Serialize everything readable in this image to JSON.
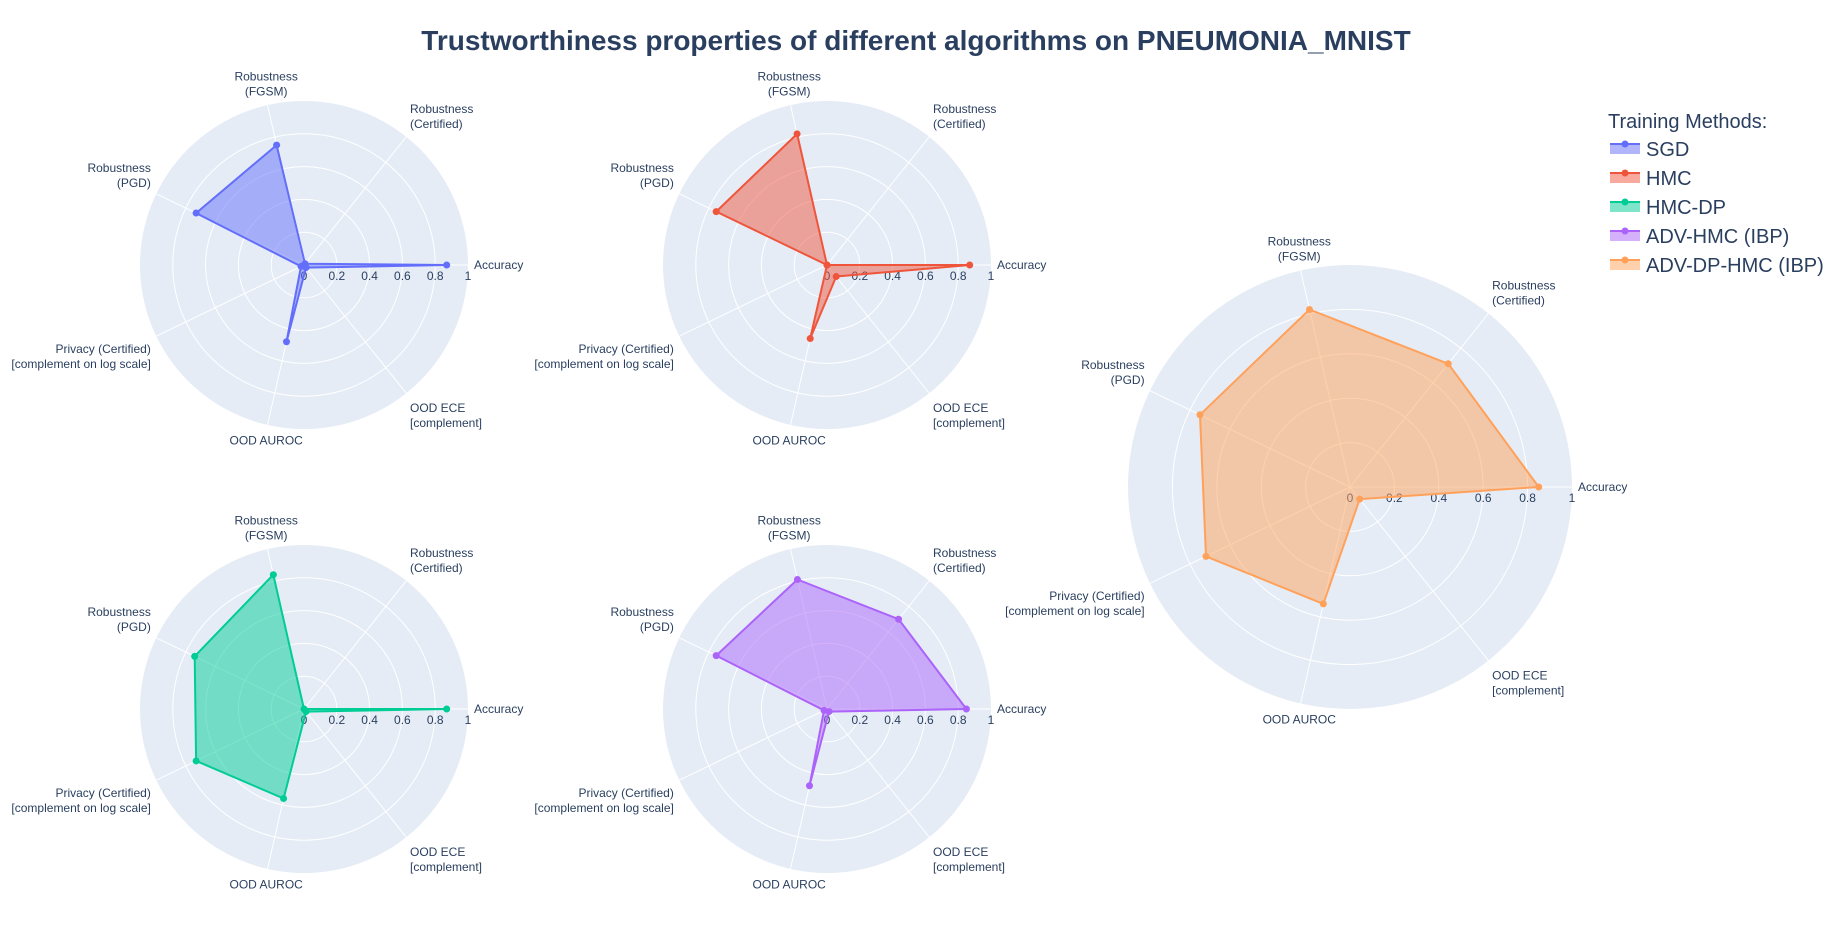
{
  "title": "Trustworthiness properties of different algorithms on PNEUMONIA_MNIST",
  "legend": {
    "title": "Training Methods:",
    "items": [
      {
        "label": "SGD",
        "color": "#636efa"
      },
      {
        "label": "HMC",
        "color": "#ef553b"
      },
      {
        "label": "HMC-DP",
        "color": "#00cc96"
      },
      {
        "label": "ADV-HMC (IBP)",
        "color": "#ab63fa"
      },
      {
        "label": "ADV-DP-HMC (IBP)",
        "color": "#ffa15a"
      }
    ]
  },
  "chart_data": {
    "type": "radar",
    "axes": [
      {
        "lines": [
          "Accuracy"
        ]
      },
      {
        "lines": [
          "Robustness",
          "(Certified)"
        ]
      },
      {
        "lines": [
          "Robustness",
          "(FGSM)"
        ]
      },
      {
        "lines": [
          "Robustness",
          "(PGD)"
        ]
      },
      {
        "lines": [
          "Privacy (Certified)",
          "[complement on log scale]"
        ]
      },
      {
        "lines": [
          "OOD AUROC"
        ]
      },
      {
        "lines": [
          "OOD ECE",
          "[complement]"
        ]
      }
    ],
    "radial_range": [
      0,
      1
    ],
    "radial_ticks": [
      "0",
      "0.2",
      "0.4",
      "0.6",
      "0.8",
      "1"
    ],
    "grid": true,
    "legend_position": "top-right",
    "series": [
      {
        "name": "SGD",
        "color": "#636efa",
        "values": [
          0.87,
          0.01,
          0.75,
          0.73,
          0.02,
          0.48,
          0.02
        ]
      },
      {
        "name": "HMC",
        "color": "#ef553b",
        "values": [
          0.87,
          0.0,
          0.82,
          0.75,
          0.0,
          0.46,
          0.09
        ]
      },
      {
        "name": "HMC-DP",
        "color": "#00cc96",
        "values": [
          0.87,
          0.0,
          0.84,
          0.74,
          0.73,
          0.56,
          0.02
        ]
      },
      {
        "name": "ADV-HMC (IBP)",
        "color": "#ab63fa",
        "values": [
          0.85,
          0.7,
          0.81,
          0.75,
          0.02,
          0.48,
          0.02
        ]
      },
      {
        "name": "ADV-DP-HMC (IBP)",
        "color": "#ffa15a",
        "values": [
          0.85,
          0.71,
          0.82,
          0.75,
          0.72,
          0.54,
          0.07
        ]
      }
    ]
  }
}
